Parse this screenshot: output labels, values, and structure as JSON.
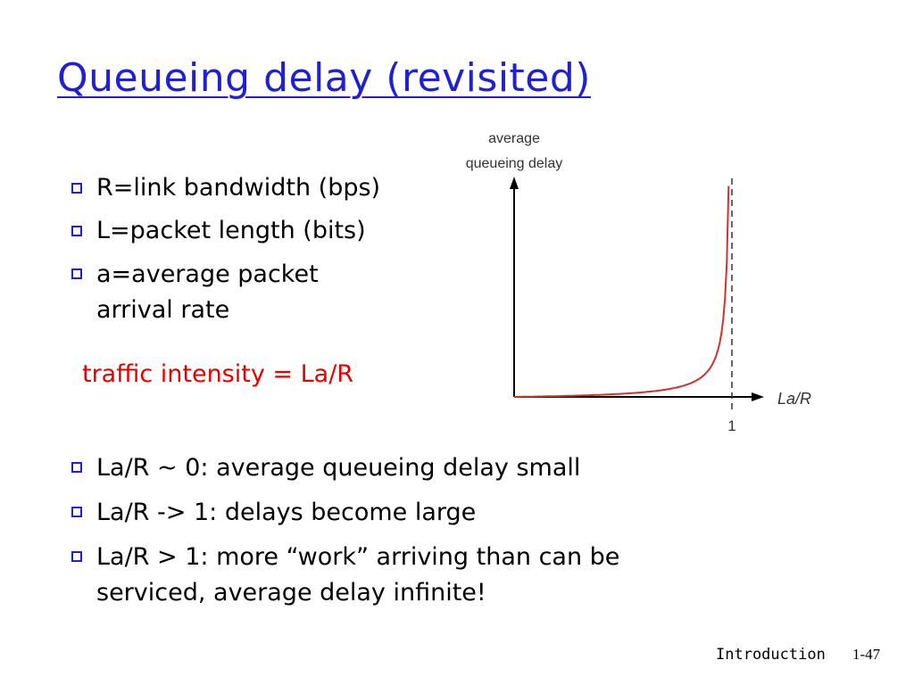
{
  "slide": {
    "title": "Queueing delay (revisited)",
    "bullets_top": [
      "R=link bandwidth (bps)",
      "L=packet length (bits)",
      "a=average packet arrival rate"
    ],
    "traffic_intensity": "traffic intensity = La/R",
    "bullets_bottom": [
      "La/R ~ 0: average queueing delay small",
      "La/R -> 1: delays become large",
      "La/R > 1: more “work” arriving than can be serviced, average delay infinite!"
    ],
    "footer_label": "Introduction",
    "page_number": "1-47"
  },
  "chart_data": {
    "type": "line",
    "ylabel_line1": "average",
    "ylabel_line2": "queueing delay",
    "xlabel": "La/R",
    "x_tick": "1",
    "curve_color": "#cc3333",
    "asymptote_style": "dashed"
  }
}
